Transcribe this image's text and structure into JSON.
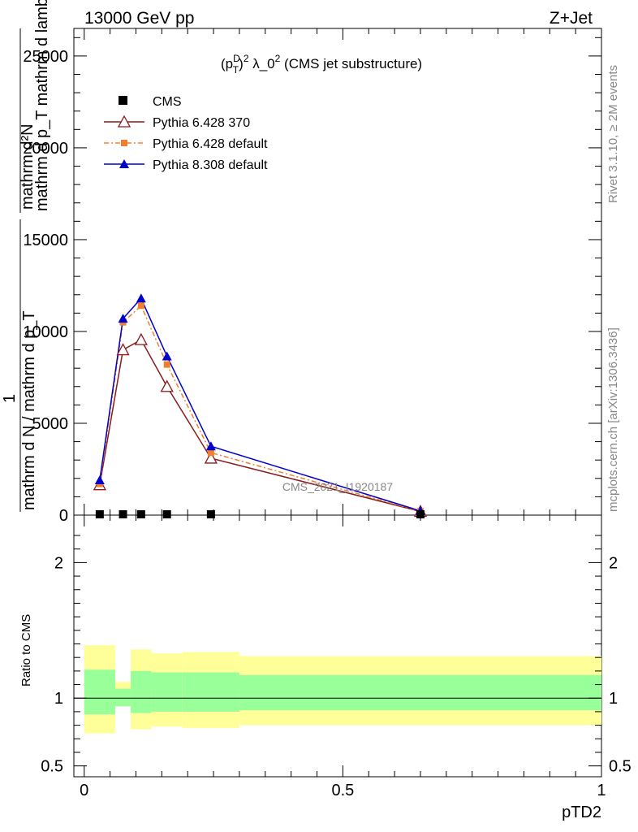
{
  "header": {
    "left": "13000 GeV pp",
    "right": "Z+Jet"
  },
  "side_labels": {
    "rivet": "Rivet 3.1.10, ≥ 2M events",
    "mcplots": "mcplots.cern.ch [arXiv:1306.3436]"
  },
  "watermark": "CMS_2021_I1920187",
  "chart_data": {
    "type": "line",
    "title": "(p_T^D)^2 λ_0^2 (CMS jet substructure)",
    "title_parts": {
      "p": "(p",
      "sup1": "D",
      "sub": "T",
      "close": ")",
      "sup2": "2",
      "lambda": " λ_0",
      "sup3": "2",
      "rest": " (CMS jet substructure)"
    },
    "xlabel": "pTD2",
    "ylabel_main": {
      "numerator": "mathrm d²N",
      "denominator": "mathrm d p_T mathrm d lambda",
      "prefix": "1",
      "prefix_den": "mathrm d N / mathrm d p_T"
    },
    "ylabel_ratio": "Ratio to CMS",
    "xlim": [
      -0.02,
      1.0
    ],
    "ylim": [
      0,
      26500
    ],
    "ratio_ylim": [
      0.42,
      2.35
    ],
    "x_ticks": [
      {
        "v": 0,
        "label": "0"
      },
      {
        "v": 0.5,
        "label": "0.5"
      },
      {
        "v": 1,
        "label": "1"
      }
    ],
    "y_ticks": [
      {
        "v": 0,
        "label": "0"
      },
      {
        "v": 5000,
        "label": "5000"
      },
      {
        "v": 10000,
        "label": "10000"
      },
      {
        "v": 15000,
        "label": "15000"
      },
      {
        "v": 20000,
        "label": "20000"
      },
      {
        "v": 25000,
        "label": "25000"
      }
    ],
    "ratio_ticks": [
      {
        "v": 0.5,
        "label": "0.5"
      },
      {
        "v": 1,
        "label": "1"
      },
      {
        "v": 2,
        "label": "2"
      }
    ],
    "x": [
      0.03,
      0.075,
      0.11,
      0.16,
      0.245,
      0.65
    ],
    "cms": {
      "name": "CMS",
      "values": [
        0,
        0,
        0,
        0,
        0,
        0
      ]
    },
    "series": [
      {
        "name": "Pythia 6.428 370",
        "color": "#8b1a1a",
        "marker": "open-triangle",
        "dash": "solid",
        "values": [
          1650,
          9000,
          9550,
          7000,
          3100,
          200
        ]
      },
      {
        "name": "Pythia 6.428 default",
        "color": "#f08030",
        "marker": "square",
        "dash": "dashdot",
        "values": [
          1700,
          10500,
          11400,
          8200,
          3400,
          210
        ]
      },
      {
        "name": "Pythia 8.308 default",
        "color": "#0000cc",
        "marker": "triangle",
        "dash": "solid",
        "values": [
          1900,
          10700,
          11800,
          8650,
          3750,
          230
        ]
      }
    ],
    "bands": [
      {
        "x0": 0.0,
        "x1": 0.06,
        "inner": [
          0.88,
          1.21
        ],
        "outer": [
          0.74,
          1.39
        ]
      },
      {
        "x0": 0.06,
        "x1": 0.09,
        "inner": [
          0.94,
          1.07
        ],
        "outer": [
          0.94,
          1.12
        ]
      },
      {
        "x0": 0.09,
        "x1": 0.13,
        "inner": [
          0.89,
          1.2
        ],
        "outer": [
          0.77,
          1.36
        ]
      },
      {
        "x0": 0.13,
        "x1": 0.19,
        "inner": [
          0.9,
          1.19
        ],
        "outer": [
          0.79,
          1.33
        ]
      },
      {
        "x0": 0.19,
        "x1": 0.3,
        "inner": [
          0.9,
          1.19
        ],
        "outer": [
          0.78,
          1.34
        ]
      },
      {
        "x0": 0.3,
        "x1": 1.0,
        "inner": [
          0.91,
          1.17
        ],
        "outer": [
          0.8,
          1.31
        ]
      }
    ],
    "band_colors": {
      "inner": "#99ff99",
      "outer": "#ffff99"
    }
  }
}
